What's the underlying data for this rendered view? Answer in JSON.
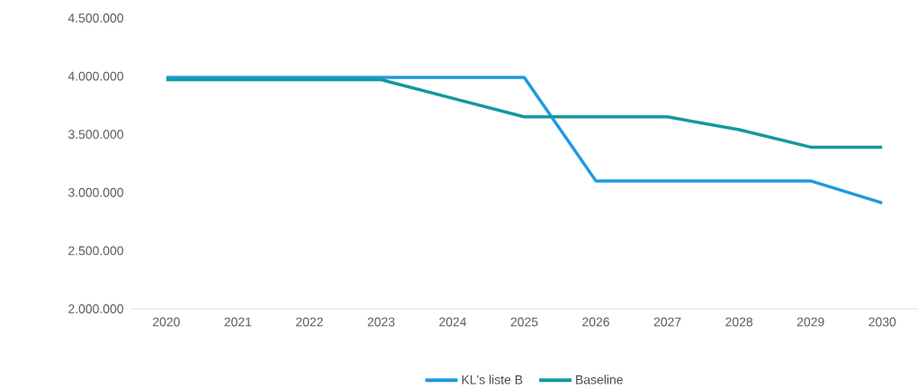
{
  "chart_data": {
    "type": "line",
    "categories": [
      "2020",
      "2021",
      "2022",
      "2023",
      "2024",
      "2025",
      "2026",
      "2027",
      "2028",
      "2029",
      "2030"
    ],
    "series": [
      {
        "name": "KL's liste B",
        "color": "#1f9ae0",
        "values": [
          3990000,
          3990000,
          3990000,
          3990000,
          3990000,
          3990000,
          3100000,
          3100000,
          3100000,
          3100000,
          2910000
        ]
      },
      {
        "name": "Baseline",
        "color": "#12999e",
        "values": [
          3970000,
          3970000,
          3970000,
          3970000,
          3810000,
          3650000,
          3650000,
          3650000,
          3540000,
          3390000,
          3390000
        ]
      }
    ],
    "ylim": [
      2000000,
      4500000
    ],
    "yticks": [
      {
        "value": 2000000,
        "label": "2.000.000"
      },
      {
        "value": 2500000,
        "label": "2.500.000"
      },
      {
        "value": 3000000,
        "label": "3.000.000"
      },
      {
        "value": 3500000,
        "label": "3.500.000"
      },
      {
        "value": 4000000,
        "label": "4.000.000"
      },
      {
        "value": 4500000,
        "label": "4.500.000"
      }
    ],
    "legend": "bottom",
    "grid": false
  }
}
